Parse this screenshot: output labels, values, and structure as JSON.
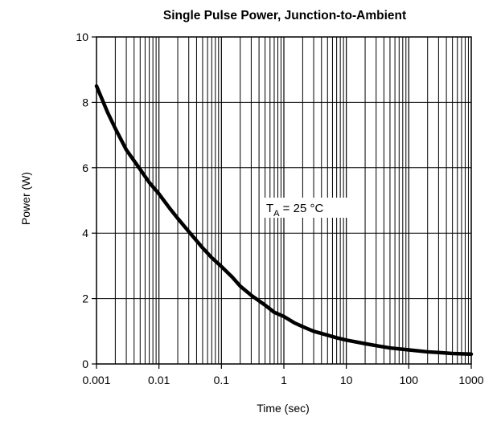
{
  "chart_data": {
    "type": "line",
    "title": "Single Pulse Power, Junction-to-Ambient",
    "xlabel": "Time (sec)",
    "ylabel": "Power  (W)",
    "x_scale": "log",
    "xlim": [
      0.001,
      1000
    ],
    "ylim": [
      0,
      10
    ],
    "x_tick_labels": [
      "0.001",
      "0.01",
      "0.1",
      "1",
      "10",
      "100",
      "1000"
    ],
    "y_tick_labels": [
      "0",
      "2",
      "4",
      "6",
      "8",
      "10"
    ],
    "grid": true,
    "annotation": {
      "main": "T",
      "sub": "A",
      "rest": " = 25 °C"
    },
    "series": [
      {
        "color": "#000000",
        "x": [
          0.001,
          0.0015,
          0.002,
          0.003,
          0.005,
          0.007,
          0.01,
          0.015,
          0.02,
          0.03,
          0.05,
          0.07,
          0.1,
          0.15,
          0.2,
          0.3,
          0.5,
          0.7,
          1,
          1.5,
          2,
          3,
          5,
          7,
          10,
          20,
          30,
          50,
          100,
          200,
          300,
          500,
          1000
        ],
        "y": [
          8.5,
          7.7,
          7.2,
          6.55,
          5.95,
          5.55,
          5.2,
          4.75,
          4.45,
          4.05,
          3.55,
          3.25,
          2.98,
          2.65,
          2.38,
          2.1,
          1.8,
          1.58,
          1.45,
          1.25,
          1.14,
          1.0,
          0.88,
          0.8,
          0.73,
          0.62,
          0.56,
          0.49,
          0.43,
          0.37,
          0.35,
          0.32,
          0.3
        ]
      }
    ]
  }
}
